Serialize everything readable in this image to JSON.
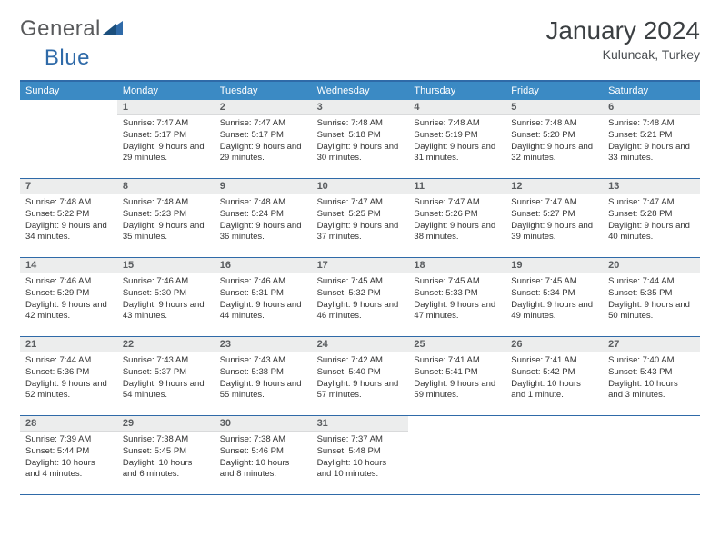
{
  "brand": {
    "part1": "General",
    "part2": "Blue"
  },
  "title": "January 2024",
  "location": "Kuluncak, Turkey",
  "weekdays": [
    "Sunday",
    "Monday",
    "Tuesday",
    "Wednesday",
    "Thursday",
    "Friday",
    "Saturday"
  ],
  "colors": {
    "header_bar": "#3b8ac4",
    "border": "#2f6aa8",
    "daynum_bg": "#eceded",
    "text": "#333333",
    "brand_gray": "#58595b",
    "brand_blue": "#2f6aa8"
  },
  "weeks": [
    [
      {
        "n": "",
        "empty": true
      },
      {
        "n": "1",
        "sr": "Sunrise: 7:47 AM",
        "ss": "Sunset: 5:17 PM",
        "dl": "Daylight: 9 hours and 29 minutes."
      },
      {
        "n": "2",
        "sr": "Sunrise: 7:47 AM",
        "ss": "Sunset: 5:17 PM",
        "dl": "Daylight: 9 hours and 29 minutes."
      },
      {
        "n": "3",
        "sr": "Sunrise: 7:48 AM",
        "ss": "Sunset: 5:18 PM",
        "dl": "Daylight: 9 hours and 30 minutes."
      },
      {
        "n": "4",
        "sr": "Sunrise: 7:48 AM",
        "ss": "Sunset: 5:19 PM",
        "dl": "Daylight: 9 hours and 31 minutes."
      },
      {
        "n": "5",
        "sr": "Sunrise: 7:48 AM",
        "ss": "Sunset: 5:20 PM",
        "dl": "Daylight: 9 hours and 32 minutes."
      },
      {
        "n": "6",
        "sr": "Sunrise: 7:48 AM",
        "ss": "Sunset: 5:21 PM",
        "dl": "Daylight: 9 hours and 33 minutes."
      }
    ],
    [
      {
        "n": "7",
        "sr": "Sunrise: 7:48 AM",
        "ss": "Sunset: 5:22 PM",
        "dl": "Daylight: 9 hours and 34 minutes."
      },
      {
        "n": "8",
        "sr": "Sunrise: 7:48 AM",
        "ss": "Sunset: 5:23 PM",
        "dl": "Daylight: 9 hours and 35 minutes."
      },
      {
        "n": "9",
        "sr": "Sunrise: 7:48 AM",
        "ss": "Sunset: 5:24 PM",
        "dl": "Daylight: 9 hours and 36 minutes."
      },
      {
        "n": "10",
        "sr": "Sunrise: 7:47 AM",
        "ss": "Sunset: 5:25 PM",
        "dl": "Daylight: 9 hours and 37 minutes."
      },
      {
        "n": "11",
        "sr": "Sunrise: 7:47 AM",
        "ss": "Sunset: 5:26 PM",
        "dl": "Daylight: 9 hours and 38 minutes."
      },
      {
        "n": "12",
        "sr": "Sunrise: 7:47 AM",
        "ss": "Sunset: 5:27 PM",
        "dl": "Daylight: 9 hours and 39 minutes."
      },
      {
        "n": "13",
        "sr": "Sunrise: 7:47 AM",
        "ss": "Sunset: 5:28 PM",
        "dl": "Daylight: 9 hours and 40 minutes."
      }
    ],
    [
      {
        "n": "14",
        "sr": "Sunrise: 7:46 AM",
        "ss": "Sunset: 5:29 PM",
        "dl": "Daylight: 9 hours and 42 minutes."
      },
      {
        "n": "15",
        "sr": "Sunrise: 7:46 AM",
        "ss": "Sunset: 5:30 PM",
        "dl": "Daylight: 9 hours and 43 minutes."
      },
      {
        "n": "16",
        "sr": "Sunrise: 7:46 AM",
        "ss": "Sunset: 5:31 PM",
        "dl": "Daylight: 9 hours and 44 minutes."
      },
      {
        "n": "17",
        "sr": "Sunrise: 7:45 AM",
        "ss": "Sunset: 5:32 PM",
        "dl": "Daylight: 9 hours and 46 minutes."
      },
      {
        "n": "18",
        "sr": "Sunrise: 7:45 AM",
        "ss": "Sunset: 5:33 PM",
        "dl": "Daylight: 9 hours and 47 minutes."
      },
      {
        "n": "19",
        "sr": "Sunrise: 7:45 AM",
        "ss": "Sunset: 5:34 PM",
        "dl": "Daylight: 9 hours and 49 minutes."
      },
      {
        "n": "20",
        "sr": "Sunrise: 7:44 AM",
        "ss": "Sunset: 5:35 PM",
        "dl": "Daylight: 9 hours and 50 minutes."
      }
    ],
    [
      {
        "n": "21",
        "sr": "Sunrise: 7:44 AM",
        "ss": "Sunset: 5:36 PM",
        "dl": "Daylight: 9 hours and 52 minutes."
      },
      {
        "n": "22",
        "sr": "Sunrise: 7:43 AM",
        "ss": "Sunset: 5:37 PM",
        "dl": "Daylight: 9 hours and 54 minutes."
      },
      {
        "n": "23",
        "sr": "Sunrise: 7:43 AM",
        "ss": "Sunset: 5:38 PM",
        "dl": "Daylight: 9 hours and 55 minutes."
      },
      {
        "n": "24",
        "sr": "Sunrise: 7:42 AM",
        "ss": "Sunset: 5:40 PM",
        "dl": "Daylight: 9 hours and 57 minutes."
      },
      {
        "n": "25",
        "sr": "Sunrise: 7:41 AM",
        "ss": "Sunset: 5:41 PM",
        "dl": "Daylight: 9 hours and 59 minutes."
      },
      {
        "n": "26",
        "sr": "Sunrise: 7:41 AM",
        "ss": "Sunset: 5:42 PM",
        "dl": "Daylight: 10 hours and 1 minute."
      },
      {
        "n": "27",
        "sr": "Sunrise: 7:40 AM",
        "ss": "Sunset: 5:43 PM",
        "dl": "Daylight: 10 hours and 3 minutes."
      }
    ],
    [
      {
        "n": "28",
        "sr": "Sunrise: 7:39 AM",
        "ss": "Sunset: 5:44 PM",
        "dl": "Daylight: 10 hours and 4 minutes."
      },
      {
        "n": "29",
        "sr": "Sunrise: 7:38 AM",
        "ss": "Sunset: 5:45 PM",
        "dl": "Daylight: 10 hours and 6 minutes."
      },
      {
        "n": "30",
        "sr": "Sunrise: 7:38 AM",
        "ss": "Sunset: 5:46 PM",
        "dl": "Daylight: 10 hours and 8 minutes."
      },
      {
        "n": "31",
        "sr": "Sunrise: 7:37 AM",
        "ss": "Sunset: 5:48 PM",
        "dl": "Daylight: 10 hours and 10 minutes."
      },
      {
        "n": "",
        "empty": true
      },
      {
        "n": "",
        "empty": true
      },
      {
        "n": "",
        "empty": true
      }
    ]
  ]
}
